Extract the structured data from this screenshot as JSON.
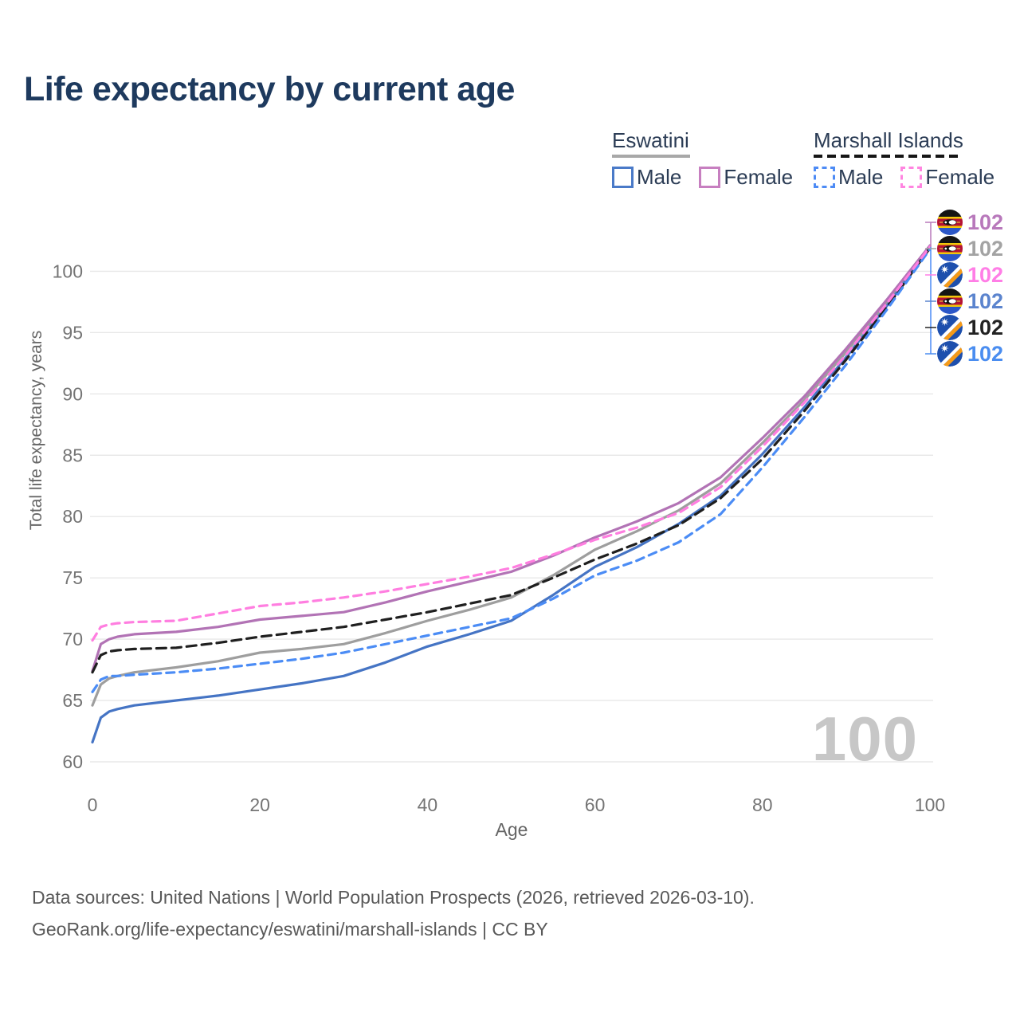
{
  "title": "Life expectancy by current age",
  "legend": {
    "groups": [
      {
        "country": "Eswatini",
        "line_style": "solid",
        "items": [
          {
            "label": "Male",
            "color": "#4a7ac8"
          },
          {
            "label": "Female",
            "color": "#c77fc0"
          }
        ]
      },
      {
        "country": "Marshall Islands",
        "line_style": "dashed",
        "items": [
          {
            "label": "Male",
            "color": "#4d8bf5"
          },
          {
            "label": "Female",
            "color": "#ff85e0"
          }
        ]
      }
    ]
  },
  "watermark": "100",
  "footer": {
    "line1": "Data sources: United Nations | World Population Prospects (2026, retrieved 2026-03-10).",
    "line2": "GeoRank.org/life-expectancy/eswatini/marshall-islands | CC BY"
  },
  "colors": {
    "title": "#1e3a5e",
    "tick_labels": "#757575",
    "axis_titles": "#666666",
    "gridlines": "#e8e8e8",
    "watermark": "#c7c7c7",
    "footer": "#595959"
  },
  "chart_data": {
    "type": "line",
    "title": "Life expectancy by current age",
    "xlabel": "Age",
    "ylabel": "Total life expectancy, years",
    "xlim": [
      0,
      100
    ],
    "ylim": [
      60,
      102.5
    ],
    "x_ticks": [
      0,
      20,
      40,
      60,
      80,
      100
    ],
    "y_ticks": [
      60,
      65,
      70,
      75,
      80,
      85,
      90,
      95,
      100
    ],
    "grid": "horizontal",
    "legend_position": "top-right",
    "ages": [
      0,
      1,
      2,
      3,
      5,
      10,
      15,
      20,
      25,
      30,
      35,
      40,
      45,
      50,
      55,
      60,
      65,
      70,
      75,
      80,
      85,
      90,
      95,
      100
    ],
    "series": [
      {
        "name": "Eswatini Total",
        "country": "Eswatini",
        "sex": "Both",
        "color": "#9e9e9e",
        "dash": null,
        "values": [
          64.6,
          66.3,
          66.8,
          67.0,
          67.3,
          67.7,
          68.2,
          68.9,
          69.2,
          69.6,
          70.5,
          71.5,
          72.4,
          73.4,
          75.2,
          77.3,
          78.8,
          80.5,
          82.7,
          86.0,
          89.5,
          93.4,
          97.6,
          102.0
        ]
      },
      {
        "name": "Eswatini Female",
        "country": "Eswatini",
        "sex": "Female",
        "color": "#b273b5",
        "dash": null,
        "values": [
          67.4,
          69.6,
          70.0,
          70.2,
          70.4,
          70.6,
          71.0,
          71.6,
          71.9,
          72.2,
          73.0,
          73.9,
          74.7,
          75.5,
          76.8,
          78.3,
          79.6,
          81.1,
          83.2,
          86.4,
          89.8,
          93.7,
          97.8,
          102.1
        ]
      },
      {
        "name": "Eswatini Male",
        "country": "Eswatini",
        "sex": "Male",
        "color": "#4574c4",
        "dash": null,
        "values": [
          61.6,
          63.6,
          64.1,
          64.3,
          64.6,
          65.0,
          65.4,
          65.9,
          66.4,
          67.0,
          68.1,
          69.4,
          70.4,
          71.5,
          73.6,
          75.9,
          77.5,
          79.4,
          81.7,
          85.1,
          88.9,
          93.0,
          97.3,
          101.9
        ]
      },
      {
        "name": "Marshall Islands Total",
        "country": "Marshall Islands",
        "sex": "Both",
        "color": "#1f1f1f",
        "dash": "12 7",
        "values": [
          67.3,
          68.7,
          69.0,
          69.1,
          69.2,
          69.3,
          69.7,
          70.2,
          70.6,
          71.0,
          71.6,
          72.2,
          72.9,
          73.6,
          75.0,
          76.5,
          77.8,
          79.3,
          81.5,
          84.7,
          88.6,
          92.8,
          97.2,
          101.9
        ]
      },
      {
        "name": "Marshall Islands Male",
        "country": "Marshall Islands",
        "sex": "Male",
        "color": "#4b8cf5",
        "dash": "10 7",
        "values": [
          65.7,
          66.7,
          67.0,
          67.0,
          67.1,
          67.3,
          67.6,
          68.0,
          68.4,
          68.9,
          69.6,
          70.3,
          71.0,
          71.7,
          73.3,
          75.2,
          76.4,
          77.9,
          80.2,
          84.0,
          88.1,
          92.4,
          97.0,
          101.8
        ]
      },
      {
        "name": "Marshall Islands Female",
        "country": "Marshall Islands",
        "sex": "Female",
        "color": "#ff7ee0",
        "dash": "10 7",
        "values": [
          69.9,
          71.0,
          71.2,
          71.3,
          71.4,
          71.5,
          72.1,
          72.7,
          73.0,
          73.4,
          73.9,
          74.5,
          75.1,
          75.8,
          76.9,
          78.1,
          79.1,
          80.3,
          82.4,
          85.7,
          89.3,
          93.2,
          97.5,
          102.0
        ]
      }
    ],
    "end_labels": [
      {
        "series": "Eswatini Female",
        "flag": "eswatini",
        "label": "102",
        "value": 102,
        "color": "#b878bb"
      },
      {
        "series": "Eswatini Total",
        "flag": "eswatini",
        "label": "102",
        "value": 102,
        "color": "#a3a3a3"
      },
      {
        "series": "Marshall Islands Female",
        "flag": "marshall-islands",
        "label": "102",
        "value": 102,
        "color": "#ff7ee6"
      },
      {
        "series": "Eswatini Male",
        "flag": "eswatini",
        "label": "102",
        "value": 102,
        "color": "#5b84ce"
      },
      {
        "series": "Marshall Islands Total",
        "flag": "marshall-islands",
        "label": "102",
        "value": 102,
        "color": "#222222"
      },
      {
        "series": "Marshall Islands Male",
        "flag": "marshall-islands",
        "label": "102",
        "value": 102,
        "color": "#4a8df0"
      }
    ]
  }
}
